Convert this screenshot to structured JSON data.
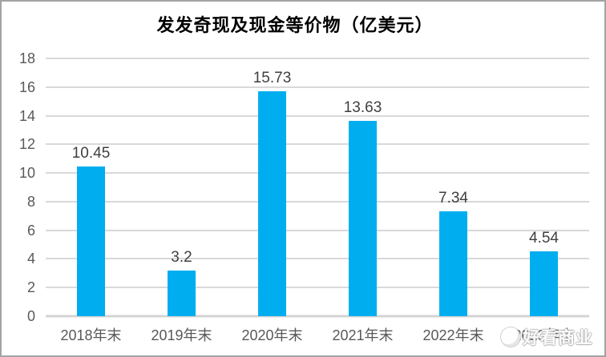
{
  "chart_data": {
    "type": "bar",
    "title": "发发奇现及现金等价物（亿美元）",
    "categories": [
      "2018年末",
      "2019年末",
      "2020年末",
      "2021年末",
      "2022年末",
      "2023年末"
    ],
    "values": [
      10.45,
      3.2,
      15.73,
      13.63,
      7.34,
      4.54
    ],
    "value_labels": [
      "10.45",
      "3.2",
      "15.73",
      "13.63",
      "7.34",
      "4.54"
    ],
    "ylim": [
      0,
      18
    ],
    "yticks": [
      0,
      2,
      4,
      6,
      8,
      10,
      12,
      14,
      16,
      18
    ],
    "grid": true,
    "legend": "none",
    "bar_color": "#00aeef",
    "gridline_color": "#d9d9d9",
    "axis_line_color": "#d4d4d4",
    "tick_label_color": "#595959",
    "data_label_color": "#3f3f3f",
    "title_color": "#000000"
  },
  "watermark": {
    "text": "好看商业",
    "logo_icon": "watermark-logo"
  }
}
